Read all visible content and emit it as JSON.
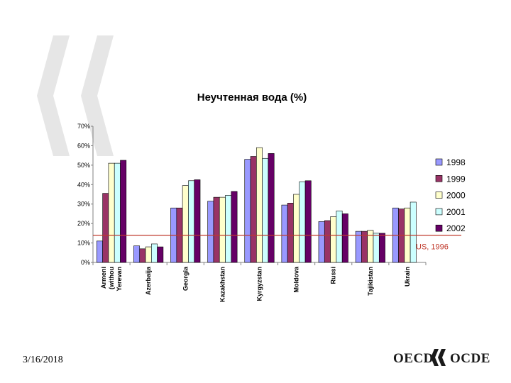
{
  "footer": {
    "date": "3/16/2018"
  },
  "logo": {
    "left_text": "OECD",
    "right_text": "OCDE"
  },
  "colors": {
    "decor_chevron": "#e6e6e6",
    "reference_line": "#c0392b",
    "axis": "#808080"
  },
  "chart_data": {
    "type": "bar",
    "title": "Неучтенная вода (%)",
    "xlabel": "",
    "ylabel": "",
    "ylim": [
      0,
      70
    ],
    "y_ticks": [
      0,
      10,
      20,
      30,
      40,
      50,
      60,
      70
    ],
    "y_tick_labels": [
      "0%",
      "10%",
      "20%",
      "30%",
      "40%",
      "50%",
      "60%",
      "70%"
    ],
    "grid": false,
    "legend_position": "right",
    "categories": [
      [
        "Armeni",
        "(withou",
        "Yerevan"
      ],
      [
        "Azerbaija"
      ],
      [
        "Georgia"
      ],
      [
        "Kazakhstan"
      ],
      [
        "Kyrgyzstan"
      ],
      [
        "Moldova"
      ],
      [
        "Russi"
      ],
      [
        "Tajikistan"
      ],
      [
        "Ukrain"
      ]
    ],
    "series": [
      {
        "name": "1998",
        "color": "#9999ff",
        "values": [
          11,
          8.5,
          28,
          31.5,
          53,
          29.5,
          21,
          16,
          28
        ]
      },
      {
        "name": "1999",
        "color": "#993366",
        "values": [
          35.5,
          7,
          28,
          33.5,
          54.5,
          30.5,
          21.5,
          16,
          27.5
        ]
      },
      {
        "name": "2000",
        "color": "#ffffcc",
        "values": [
          51,
          8,
          39.5,
          33.5,
          59,
          35,
          23.5,
          16.5,
          28
        ]
      },
      {
        "name": "2001",
        "color": "#ccffff",
        "values": [
          51,
          9.5,
          42,
          34.5,
          53.5,
          41.5,
          26.5,
          15,
          31
        ]
      },
      {
        "name": "2002",
        "color": "#660066",
        "values": [
          52.5,
          8,
          42.5,
          36.5,
          56,
          42,
          25,
          15,
          null
        ]
      }
    ],
    "reference_line": {
      "label": "US, 1996",
      "value": 14
    }
  }
}
